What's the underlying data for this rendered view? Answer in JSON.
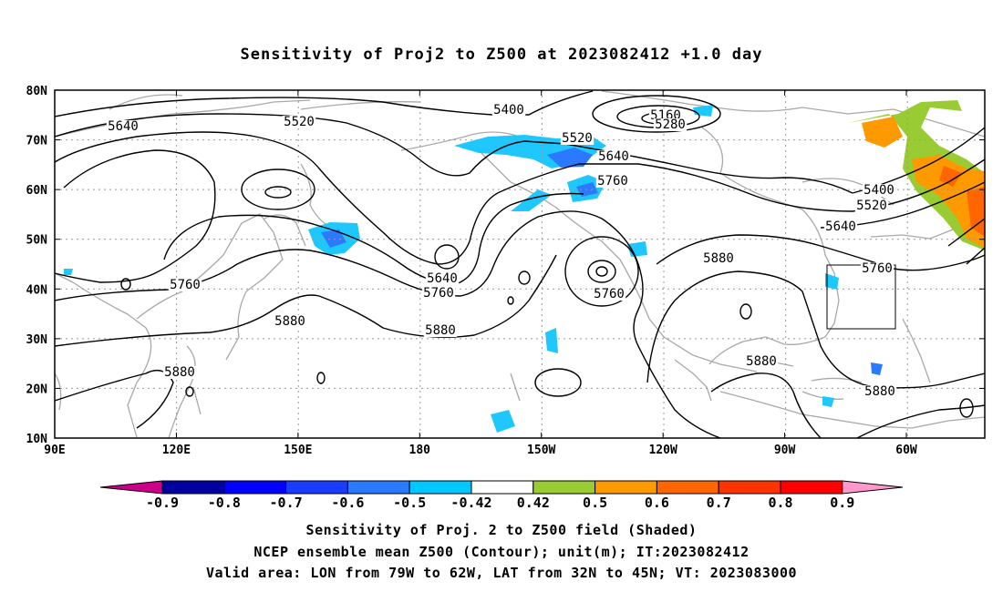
{
  "title": "Sensitivity of Proj2 to Z500 at 2023082412 +1.0 day",
  "map": {
    "lat_ticks": [
      "10N",
      "20N",
      "30N",
      "40N",
      "50N",
      "60N",
      "70N",
      "80N"
    ],
    "lon_ticks": [
      "90E",
      "120E",
      "150E",
      "180",
      "150W",
      "120W",
      "90W",
      "60W"
    ],
    "contour_labels": [
      {
        "text": "5640"
      },
      {
        "text": "5520"
      },
      {
        "text": "5400"
      },
      {
        "text": "5160"
      },
      {
        "text": "5280"
      },
      {
        "text": "5520"
      },
      {
        "text": "5640"
      },
      {
        "text": "5760"
      },
      {
        "text": "5400"
      },
      {
        "text": "5520"
      },
      {
        "text": "5640"
      },
      {
        "text": "5760"
      },
      {
        "text": "5880"
      },
      {
        "text": "5760"
      },
      {
        "text": "5880"
      },
      {
        "text": "5880"
      },
      {
        "text": "5640"
      },
      {
        "text": "5760"
      },
      {
        "text": "5760"
      },
      {
        "text": "5880"
      },
      {
        "text": "5880"
      },
      {
        "text": "5880"
      }
    ],
    "valid_area": {
      "lon_from": "79W",
      "lon_to": "62W",
      "lat_from": "32N",
      "lat_to": "45N"
    }
  },
  "colorbar": {
    "labels": [
      "-0.9",
      "-0.8",
      "-0.7",
      "-0.6",
      "-0.5",
      "-0.42",
      "0.42",
      "0.5",
      "0.6",
      "0.7",
      "0.8",
      "0.9"
    ],
    "colors": [
      "#0000a0",
      "#0000ff",
      "#1a3cff",
      "#2b79ff",
      "#00c8ff",
      "#ffffff",
      "#99cc33",
      "#ff9900",
      "#ff6600",
      "#ff3300",
      "#ff0000"
    ],
    "under_color": "#cc0088",
    "over_color": "#ff99cc"
  },
  "captions": {
    "line1": "Sensitivity of Proj. 2 to Z500 field (Shaded)",
    "line2": "NCEP ensemble mean Z500 (Contour); unit(m); IT:2023082412",
    "line3": "Valid area: LON from 79W to 62W, LAT from 32N to 45N; VT: 2023083000"
  },
  "colors": {
    "negative_shade": "#1ec8ff",
    "negative_strong": "#2b79ff",
    "positive_green": "#99cc33",
    "positive_orange": "#ff9900",
    "coastline": "#a8a8a8"
  }
}
